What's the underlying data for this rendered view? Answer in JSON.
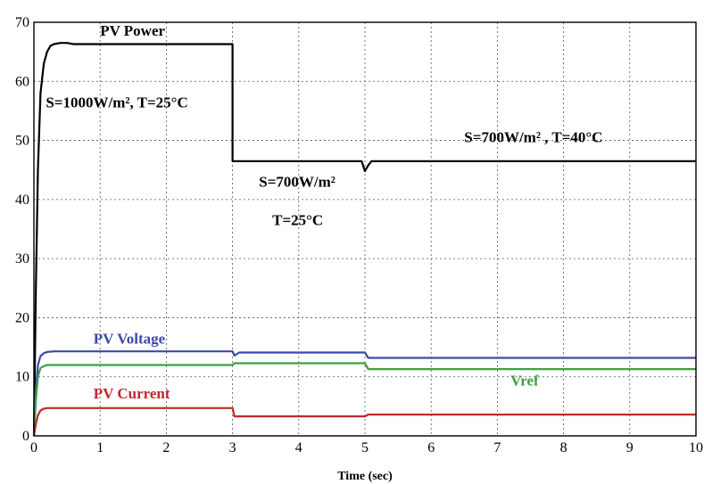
{
  "chart_data": {
    "type": "line",
    "xlabel": "Time (sec)",
    "ylabel": "",
    "xlim": [
      0,
      10
    ],
    "ylim": [
      0,
      70
    ],
    "xticks": [
      0,
      1,
      2,
      3,
      4,
      5,
      6,
      7,
      8,
      9,
      10
    ],
    "yticks": [
      0,
      10,
      20,
      30,
      40,
      50,
      60,
      70
    ],
    "grid": true,
    "series": [
      {
        "name": "PV Power",
        "color": "#000000",
        "x": [
          0,
          0.03,
          0.06,
          0.1,
          0.15,
          0.2,
          0.25,
          0.3,
          0.4,
          0.5,
          0.6,
          0.8,
          1.0,
          2.0,
          3.0,
          3.0,
          3.5,
          4.0,
          4.5,
          4.95,
          5.0,
          5.05,
          5.1,
          6.0,
          7.0,
          8.0,
          9.0,
          10.0
        ],
        "y": [
          0,
          25,
          45,
          58,
          63,
          65,
          66,
          66.3,
          66.5,
          66.5,
          66.3,
          66.3,
          66.3,
          66.3,
          66.3,
          46.5,
          46.5,
          46.5,
          46.5,
          46.5,
          44.8,
          45.8,
          46.5,
          46.5,
          46.5,
          46.5,
          46.5,
          46.5
        ]
      },
      {
        "name": "PV Voltage",
        "color": "#3b4aa8",
        "x": [
          0,
          0.03,
          0.06,
          0.1,
          0.15,
          0.2,
          0.3,
          0.5,
          1.0,
          2.0,
          3.0,
          3.03,
          3.1,
          4.0,
          5.0,
          5.05,
          5.2,
          6.0,
          7.0,
          8.0,
          9.0,
          10.0
        ],
        "y": [
          0,
          8,
          12,
          13.5,
          14,
          14.2,
          14.3,
          14.3,
          14.3,
          14.3,
          14.3,
          13.6,
          14.1,
          14.1,
          14.1,
          13.2,
          13.2,
          13.2,
          13.2,
          13.2,
          13.2,
          13.2
        ]
      },
      {
        "name": "Vref",
        "color": "#3aa043",
        "x": [
          0,
          0.03,
          0.06,
          0.1,
          0.15,
          0.2,
          0.3,
          0.5,
          1.0,
          2.0,
          3.0,
          3.03,
          3.1,
          4.0,
          5.0,
          5.05,
          5.2,
          6.0,
          7.0,
          8.0,
          9.0,
          10.0
        ],
        "y": [
          0,
          6,
          10,
          11.5,
          11.8,
          12,
          12,
          12,
          12,
          12,
          12,
          12.3,
          12.3,
          12.3,
          12.3,
          11.3,
          11.3,
          11.3,
          11.3,
          11.3,
          11.3,
          11.3
        ]
      },
      {
        "name": "PV Current",
        "color": "#c0282d",
        "x": [
          0,
          0.03,
          0.06,
          0.1,
          0.15,
          0.2,
          0.3,
          0.5,
          1.0,
          2.0,
          3.0,
          3.03,
          3.5,
          4.0,
          5.0,
          5.05,
          5.2,
          6.0,
          7.0,
          8.0,
          9.0,
          10.0
        ],
        "y": [
          0,
          2,
          3.5,
          4.3,
          4.6,
          4.7,
          4.7,
          4.7,
          4.7,
          4.7,
          4.7,
          3.3,
          3.3,
          3.3,
          3.3,
          3.6,
          3.6,
          3.6,
          3.6,
          3.6,
          3.6,
          3.6
        ]
      }
    ],
    "annotations": [
      {
        "text": "PV Power",
        "x": 1.0,
        "y": 67.7,
        "color": "#000000"
      },
      {
        "text": "S=1000W/m², T=25°C",
        "x": 0.18,
        "y": 55.6,
        "color": "#000000"
      },
      {
        "text": "S=700W/m²  ,  T=40°C",
        "x": 6.5,
        "y": 49.7,
        "color": "#000000"
      },
      {
        "text": "S=700W/m²",
        "x": 3.4,
        "y": 42.2,
        "color": "#000000"
      },
      {
        "text": "T=25°C",
        "x": 3.6,
        "y": 35.7,
        "color": "#000000"
      },
      {
        "text": "PV Voltage",
        "x": 0.9,
        "y": 15.6,
        "color": "#3b4aa8"
      },
      {
        "text": "Vref",
        "x": 7.2,
        "y": 8.5,
        "color": "#3aa043"
      },
      {
        "text": "PV Current",
        "x": 0.9,
        "y": 6.3,
        "color": "#c0282d"
      }
    ]
  }
}
